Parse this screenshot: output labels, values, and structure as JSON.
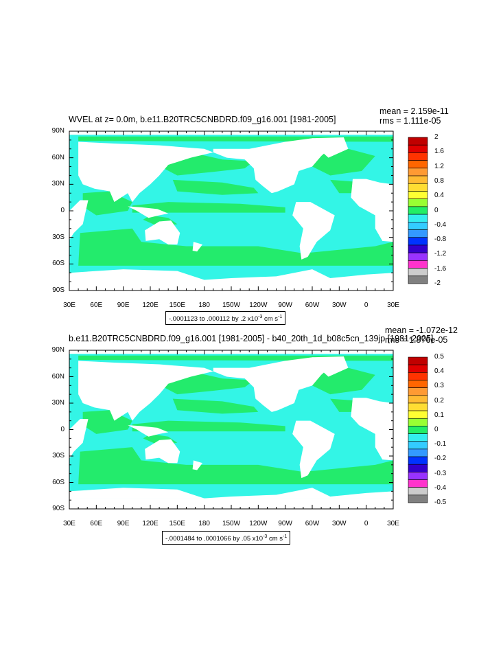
{
  "panels": [
    {
      "title": "WVEL at z=   0.0m, b.e11.B20TRC5CNBDRD.f09_g16.001 [1981-2005]",
      "mean": "mean = 2.159e-11",
      "rms": "rms = 1.111e-05",
      "range_text": "-.0001123 to .000112 by .2 x10",
      "range_exp": "-3",
      "range_units": " cm s",
      "range_units_exp": "-1",
      "colorbar_labels": [
        "2",
        "1.6",
        "1.2",
        "0.8",
        "0.4",
        "0",
        "-0.4",
        "-0.8",
        "-1.2",
        "-1.6",
        "-2"
      ]
    },
    {
      "title": "b.e11.B20TRC5CNBDRD.f09_g16.001 [1981-2005] - b40_20th_1d_b08c5cn_139jp [1981-2005]",
      "mean": "mean = -1.072e-12",
      "rms": "rms = 1.876e-05",
      "range_text": "-.0001484 to .0001066 by .05 x10",
      "range_exp": "-3",
      "range_units": " cm s",
      "range_units_exp": "-1",
      "colorbar_labels": [
        "0.5",
        "0.4",
        "0.3",
        "0.2",
        "0.1",
        "0",
        "-0.1",
        "-0.2",
        "-0.3",
        "-0.4",
        "-0.5"
      ]
    }
  ],
  "lat_labels": [
    "90N",
    "60N",
    "30N",
    "0",
    "30S",
    "60S",
    "90S"
  ],
  "lon_labels": [
    "30E",
    "60E",
    "90E",
    "120E",
    "150E",
    "180",
    "150W",
    "120W",
    "90W",
    "60W",
    "30W",
    "0",
    "30E"
  ],
  "colors": {
    "ocean_cyan": "#33f5e6",
    "ocean_green": "#23eb6c",
    "land": "#ffffff",
    "colorbar": [
      "#c00000",
      "#e00000",
      "#ff3300",
      "#ff6600",
      "#ff9a33",
      "#ffbb33",
      "#ffdd33",
      "#ffff33",
      "#99ff33",
      "#22ee66",
      "#33eeee",
      "#33ccff",
      "#3399ff",
      "#0033ff",
      "#3300cc",
      "#9933ff",
      "#ff33cc",
      "#cccccc",
      "#808080"
    ]
  }
}
